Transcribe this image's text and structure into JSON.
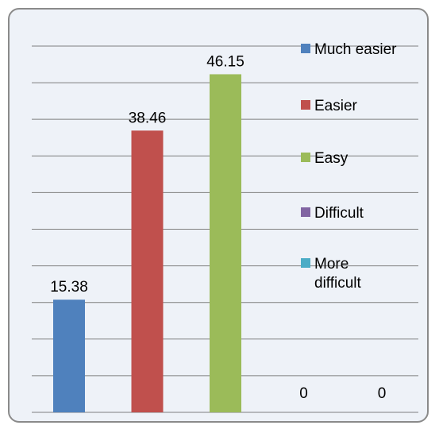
{
  "chart_data": {
    "type": "bar",
    "categories": [
      "Much easier",
      "Easier",
      "Easy",
      "Difficult",
      "More difficult"
    ],
    "values": [
      15.38,
      38.46,
      46.15,
      0,
      0
    ],
    "data_labels": [
      "15.38",
      "38.46",
      "46.15",
      "0",
      "0"
    ],
    "colors": [
      "#4f81bd",
      "#c0504d",
      "#9bbb59",
      "#8064a2",
      "#4bacc6"
    ],
    "title": "",
    "xlabel": "",
    "ylabel": "",
    "ylim": [
      0,
      50
    ],
    "grid": true,
    "legend_placement": "right",
    "legend": [
      {
        "lines": [
          "Much easier"
        ],
        "color": "#4f81bd"
      },
      {
        "lines": [
          "Easier"
        ],
        "color": "#c0504d"
      },
      {
        "lines": [
          "Easy"
        ],
        "color": "#9bbb59"
      },
      {
        "lines": [
          "Difficult"
        ],
        "color": "#8064a2"
      },
      {
        "lines": [
          "More",
          "difficult"
        ],
        "color": "#4bacc6"
      }
    ]
  }
}
